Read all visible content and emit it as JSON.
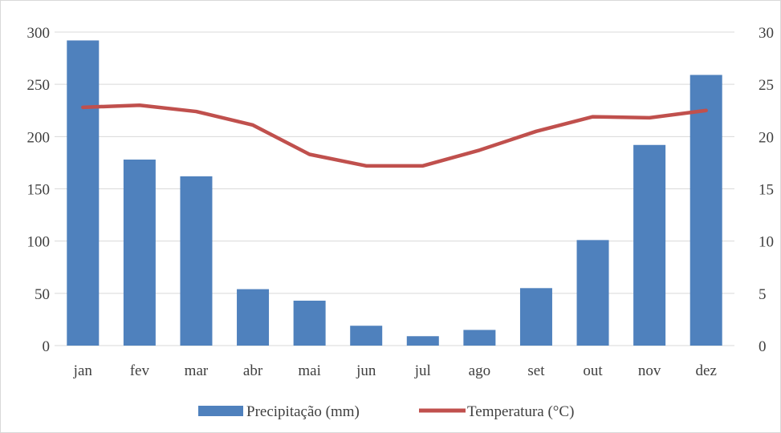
{
  "chart_data": {
    "type": "bar",
    "categories": [
      "jan",
      "fev",
      "mar",
      "abr",
      "mai",
      "jun",
      "jul",
      "ago",
      "set",
      "out",
      "nov",
      "dez"
    ],
    "series": [
      {
        "name": "Precipitação (mm)",
        "type": "bar",
        "axis": "left",
        "color": "#4f81bd",
        "values": [
          292,
          178,
          162,
          54,
          43,
          19,
          9,
          15,
          55,
          101,
          192,
          259
        ]
      },
      {
        "name": "Temperatura (°C)",
        "type": "line",
        "axis": "right",
        "color": "#c0504d",
        "values": [
          22.8,
          23.0,
          22.4,
          21.1,
          18.3,
          17.2,
          17.2,
          18.7,
          20.5,
          21.9,
          21.8,
          22.5
        ]
      }
    ],
    "y_left": {
      "ylim": [
        0,
        300
      ],
      "ticks": [
        "0",
        "50",
        "100",
        "150",
        "200",
        "250",
        "300"
      ]
    },
    "y_right": {
      "ylim": [
        0,
        30
      ],
      "ticks": [
        "0",
        "5",
        "10",
        "15",
        "20",
        "25",
        "30"
      ]
    },
    "grid": true,
    "legend": "bottom",
    "title": "",
    "xlabel": "",
    "ylabel": ""
  }
}
